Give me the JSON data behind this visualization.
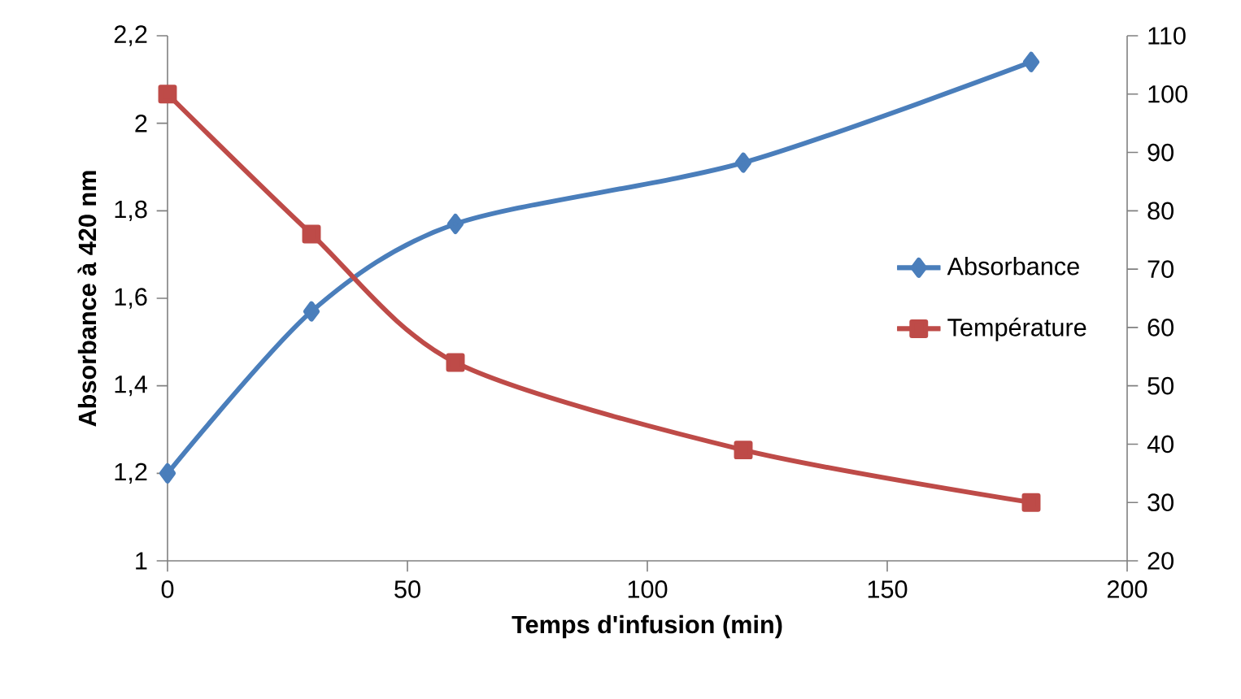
{
  "chart_data": {
    "type": "line",
    "xlabel": "Temps d'infusion (min)",
    "ylabel": "Absorbance à 420 nm",
    "x": [
      0,
      30,
      60,
      120,
      180
    ],
    "series": [
      {
        "name": "Absorbance",
        "color": "#4a7ebb",
        "values": [
          1.2,
          1.57,
          1.77,
          1.91,
          2.14
        ],
        "marker": "diamond"
      },
      {
        "name": "Température",
        "color": "#be4b48",
        "values": [
          100,
          76,
          54,
          39,
          30
        ],
        "marker": "square",
        "axis": "y2"
      }
    ],
    "xlim": [
      0,
      200
    ],
    "xticks": [
      0,
      50,
      100,
      150,
      200
    ],
    "ylim": [
      1,
      2.2
    ],
    "yticks": [
      1,
      {
        "value": 1.2,
        "label": "1,2"
      },
      {
        "value": 1.4,
        "label": "1,4"
      },
      {
        "value": 1.6,
        "label": "1,6"
      },
      {
        "value": 1.8,
        "label": "1,8"
      },
      2,
      {
        "value": 2.2,
        "label": "2,2"
      }
    ],
    "y2lim": [
      20,
      110
    ],
    "y2ticks": [
      20,
      30,
      40,
      50,
      60,
      70,
      80,
      90,
      100,
      110
    ],
    "legend": "right",
    "grid": false
  }
}
